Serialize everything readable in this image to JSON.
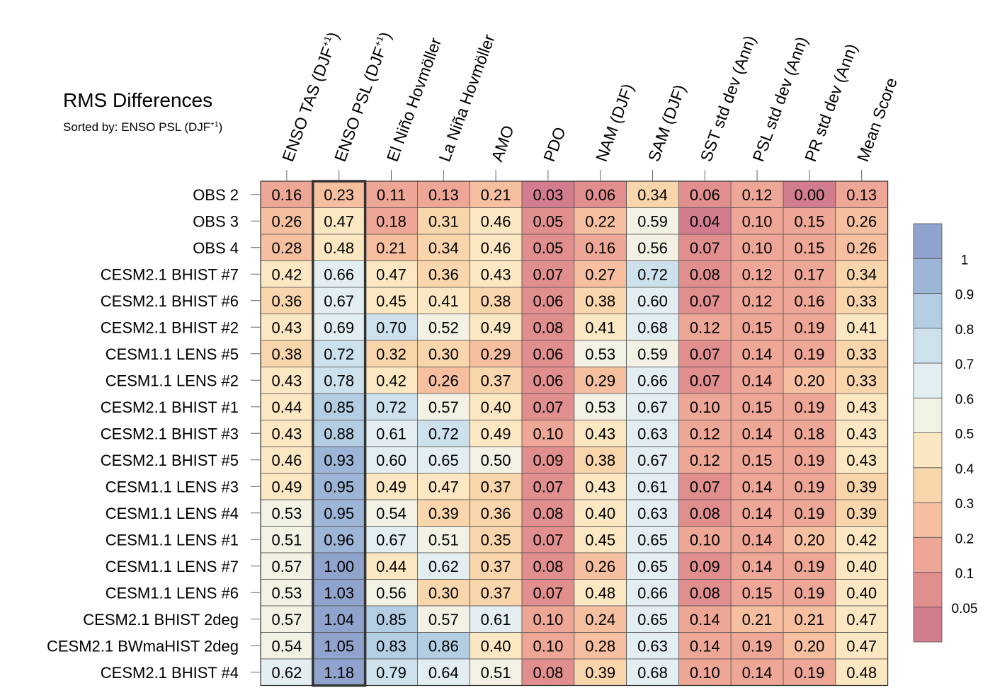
{
  "title": "RMS Differences",
  "subtitle": "Sorted by: ENSO PSL (DJF",
  "subtitle_sup": "+1",
  "subtitle_end": ")",
  "chart_data": {
    "type": "heatmap",
    "columns": [
      {
        "label": "ENSO TAS (DJF",
        "sup": "+1",
        "tail": ")"
      },
      {
        "label": "ENSO PSL (DJF",
        "sup": "+1",
        "tail": ")"
      },
      {
        "label": "El Niño Hovmöller",
        "sup": "",
        "tail": ""
      },
      {
        "label": "La Niña Hovmöller",
        "sup": "",
        "tail": ""
      },
      {
        "label": "AMO",
        "sup": "",
        "tail": ""
      },
      {
        "label": "PDO",
        "sup": "",
        "tail": ""
      },
      {
        "label": "NAM (DJF)",
        "sup": "",
        "tail": ""
      },
      {
        "label": "SAM (DJF)",
        "sup": "",
        "tail": ""
      },
      {
        "label": "SST std dev (Ann)",
        "sup": "",
        "tail": ""
      },
      {
        "label": "PSL std dev (Ann)",
        "sup": "",
        "tail": ""
      },
      {
        "label": "PR std dev (Ann)",
        "sup": "",
        "tail": ""
      },
      {
        "label": "Mean Score",
        "sup": "",
        "tail": ""
      }
    ],
    "rows": [
      "OBS 2",
      "OBS 3",
      "OBS 4",
      "CESM2.1 BHIST #7",
      "CESM2.1 BHIST #6",
      "CESM2.1 BHIST #2",
      "CESM1.1 LENS #5",
      "CESM1.1 LENS #2",
      "CESM2.1 BHIST #1",
      "CESM2.1 BHIST #3",
      "CESM2.1 BHIST #5",
      "CESM1.1 LENS #3",
      "CESM1.1 LENS #4",
      "CESM1.1 LENS #1",
      "CESM1.1 LENS #7",
      "CESM1.1 LENS #6",
      "CESM2.1 BHIST 2deg",
      "CESM2.1 BWmaHIST 2deg",
      "CESM2.1 BHIST #4"
    ],
    "values": [
      [
        "0.16",
        "0.23",
        "0.11",
        "0.13",
        "0.21",
        "0.03",
        "0.06",
        "0.34",
        "0.06",
        "0.12",
        "0.00",
        "0.13"
      ],
      [
        "0.26",
        "0.47",
        "0.18",
        "0.31",
        "0.46",
        "0.05",
        "0.22",
        "0.59",
        "0.04",
        "0.10",
        "0.15",
        "0.26"
      ],
      [
        "0.28",
        "0.48",
        "0.21",
        "0.34",
        "0.46",
        "0.05",
        "0.16",
        "0.56",
        "0.07",
        "0.10",
        "0.15",
        "0.26"
      ],
      [
        "0.42",
        "0.66",
        "0.47",
        "0.36",
        "0.43",
        "0.07",
        "0.27",
        "0.72",
        "0.08",
        "0.12",
        "0.17",
        "0.34"
      ],
      [
        "0.36",
        "0.67",
        "0.45",
        "0.41",
        "0.38",
        "0.06",
        "0.38",
        "0.60",
        "0.07",
        "0.12",
        "0.16",
        "0.33"
      ],
      [
        "0.43",
        "0.69",
        "0.70",
        "0.52",
        "0.49",
        "0.08",
        "0.41",
        "0.68",
        "0.12",
        "0.15",
        "0.19",
        "0.41"
      ],
      [
        "0.38",
        "0.72",
        "0.32",
        "0.30",
        "0.29",
        "0.06",
        "0.53",
        "0.59",
        "0.07",
        "0.14",
        "0.19",
        "0.33"
      ],
      [
        "0.43",
        "0.78",
        "0.42",
        "0.26",
        "0.37",
        "0.06",
        "0.29",
        "0.66",
        "0.07",
        "0.14",
        "0.20",
        "0.33"
      ],
      [
        "0.44",
        "0.85",
        "0.72",
        "0.57",
        "0.40",
        "0.07",
        "0.53",
        "0.67",
        "0.10",
        "0.15",
        "0.19",
        "0.43"
      ],
      [
        "0.43",
        "0.88",
        "0.61",
        "0.72",
        "0.49",
        "0.10",
        "0.43",
        "0.63",
        "0.12",
        "0.14",
        "0.18",
        "0.43"
      ],
      [
        "0.46",
        "0.93",
        "0.60",
        "0.65",
        "0.50",
        "0.09",
        "0.38",
        "0.67",
        "0.12",
        "0.15",
        "0.19",
        "0.43"
      ],
      [
        "0.49",
        "0.95",
        "0.49",
        "0.47",
        "0.37",
        "0.07",
        "0.43",
        "0.61",
        "0.07",
        "0.14",
        "0.19",
        "0.39"
      ],
      [
        "0.53",
        "0.95",
        "0.54",
        "0.39",
        "0.36",
        "0.08",
        "0.40",
        "0.63",
        "0.08",
        "0.14",
        "0.19",
        "0.39"
      ],
      [
        "0.51",
        "0.96",
        "0.67",
        "0.51",
        "0.35",
        "0.07",
        "0.45",
        "0.65",
        "0.10",
        "0.14",
        "0.20",
        "0.42"
      ],
      [
        "0.57",
        "1.00",
        "0.44",
        "0.62",
        "0.37",
        "0.08",
        "0.26",
        "0.65",
        "0.09",
        "0.14",
        "0.19",
        "0.40"
      ],
      [
        "0.53",
        "1.03",
        "0.56",
        "0.30",
        "0.37",
        "0.07",
        "0.48",
        "0.66",
        "0.08",
        "0.15",
        "0.19",
        "0.40"
      ],
      [
        "0.57",
        "1.04",
        "0.85",
        "0.57",
        "0.61",
        "0.10",
        "0.24",
        "0.65",
        "0.14",
        "0.21",
        "0.21",
        "0.47"
      ],
      [
        "0.54",
        "1.05",
        "0.83",
        "0.86",
        "0.40",
        "0.10",
        "0.28",
        "0.63",
        "0.14",
        "0.19",
        "0.20",
        "0.47"
      ],
      [
        "0.62",
        "1.18",
        "0.79",
        "0.64",
        "0.51",
        "0.08",
        "0.39",
        "0.68",
        "0.10",
        "0.14",
        "0.19",
        "0.48"
      ]
    ],
    "highlighted_column": 1,
    "colorbar": {
      "levels": [
        0,
        0.05,
        0.1,
        0.2,
        0.3,
        0.4,
        0.5,
        0.6,
        0.7,
        0.8,
        0.9,
        1.0
      ],
      "tick_labels": [
        "0.05",
        "0.1",
        "0.2",
        "0.3",
        "0.4",
        "0.5",
        "0.6",
        "0.7",
        "0.8",
        "0.9",
        "1"
      ],
      "colors": [
        "#d17d8e",
        "#e18e8e",
        "#eea696",
        "#f5bfa0",
        "#f9d5ac",
        "#fbe8c3",
        "#f3f1e4",
        "#e3eef2",
        "#cde1ec",
        "#b3cde2",
        "#9db5d6",
        "#8fa3cc"
      ]
    }
  }
}
